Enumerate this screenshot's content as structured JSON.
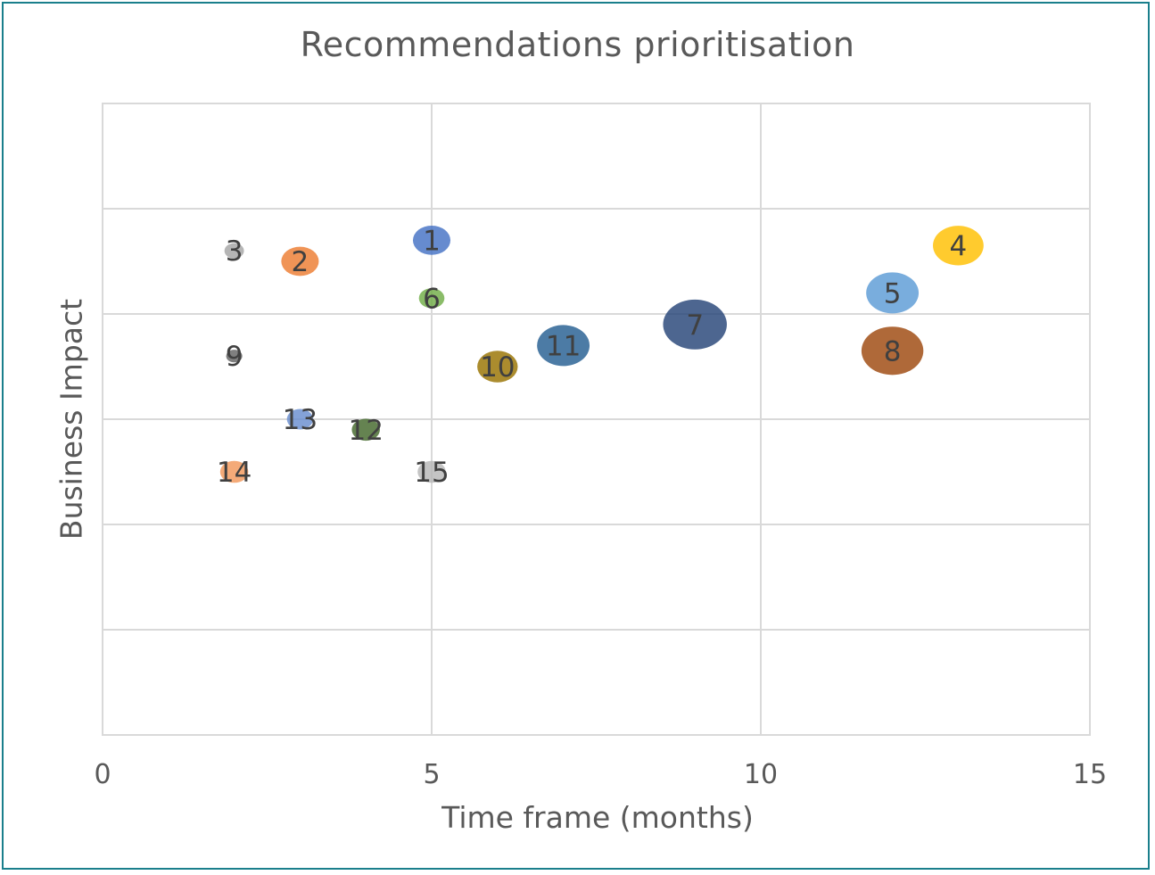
{
  "chart_data": {
    "type": "bubble",
    "title": "Recommendations prioritisation",
    "xlabel": "Time frame (months)",
    "ylabel": "Business Impact",
    "xlim": [
      0,
      15
    ],
    "ylim": [
      0,
      6
    ],
    "x_ticks": [
      "0",
      "5",
      "10",
      "15"
    ],
    "y_ticks_labeled": false,
    "grid": true,
    "points": [
      {
        "label": "1",
        "x": 5,
        "y": 4.7,
        "size": 1.0,
        "color": "#4472C4"
      },
      {
        "label": "2",
        "x": 3,
        "y": 4.5,
        "size": 1.0,
        "color": "#ED7D31"
      },
      {
        "label": "3",
        "x": 2,
        "y": 4.6,
        "size": 0.52,
        "color": "#A5A5A5"
      },
      {
        "label": "4",
        "x": 13,
        "y": 4.65,
        "size": 1.35,
        "color": "#FFC000"
      },
      {
        "label": "5",
        "x": 12,
        "y": 4.2,
        "size": 1.4,
        "color": "#5B9BD5"
      },
      {
        "label": "6",
        "x": 5,
        "y": 4.15,
        "size": 0.68,
        "color": "#70AD47"
      },
      {
        "label": "7",
        "x": 9,
        "y": 3.9,
        "size": 1.7,
        "color": "#264478"
      },
      {
        "label": "8",
        "x": 12,
        "y": 3.65,
        "size": 1.65,
        "color": "#9E480E"
      },
      {
        "label": "9",
        "x": 2,
        "y": 3.6,
        "size": 0.43,
        "color": "#636363"
      },
      {
        "label": "10",
        "x": 6,
        "y": 3.5,
        "size": 1.08,
        "color": "#997300"
      },
      {
        "label": "11",
        "x": 7,
        "y": 3.7,
        "size": 1.4,
        "color": "#255E91"
      },
      {
        "label": "12",
        "x": 4,
        "y": 2.9,
        "size": 0.75,
        "color": "#43682B"
      },
      {
        "label": "13",
        "x": 3,
        "y": 3.0,
        "size": 0.7,
        "color": "#698ED0"
      },
      {
        "label": "14",
        "x": 2,
        "y": 2.5,
        "size": 0.75,
        "color": "#F1975A"
      },
      {
        "label": "15",
        "x": 5,
        "y": 2.5,
        "size": 0.75,
        "color": "#B7B7B7"
      }
    ]
  },
  "colors": {
    "frame_border": "#1a7f8c",
    "grid": "#d9d9d9",
    "text": "#595959"
  }
}
